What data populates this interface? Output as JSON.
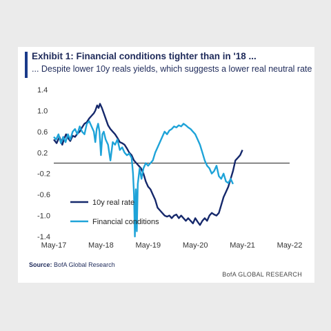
{
  "chart_data": {
    "type": "line",
    "title": "Exhibit 1: Financial conditions tighter than in '18 ...",
    "subtitle": "... Despite lower 10y reals yields, which suggests a lower real neutral rate",
    "ylim": [
      -1.4,
      1.4
    ],
    "yticks": [
      "1.4",
      "1.0",
      "0.6",
      "0.2",
      "-0.2",
      "-0.6",
      "-1.0",
      "-1.4"
    ],
    "xticks": [
      "May-17",
      "May-18",
      "May-19",
      "May-20",
      "May-21",
      "May-22"
    ],
    "legend_position": "bottom-left",
    "zero_line": true,
    "series": [
      {
        "name": "10y real rate",
        "color": "#15286b",
        "points": [
          [
            0.0,
            0.45
          ],
          [
            0.06,
            0.38
          ],
          [
            0.12,
            0.5
          ],
          [
            0.18,
            0.35
          ],
          [
            0.22,
            0.46
          ],
          [
            0.26,
            0.55
          ],
          [
            0.3,
            0.48
          ],
          [
            0.35,
            0.42
          ],
          [
            0.4,
            0.52
          ],
          [
            0.45,
            0.5
          ],
          [
            0.5,
            0.56
          ],
          [
            0.55,
            0.6
          ],
          [
            0.6,
            0.68
          ],
          [
            0.65,
            0.75
          ],
          [
            0.7,
            0.78
          ],
          [
            0.75,
            0.85
          ],
          [
            0.8,
            0.9
          ],
          [
            0.85,
            0.95
          ],
          [
            0.88,
            1.0
          ],
          [
            0.92,
            1.1
          ],
          [
            0.95,
            1.05
          ],
          [
            0.98,
            1.13
          ],
          [
            1.02,
            1.05
          ],
          [
            1.06,
            0.95
          ],
          [
            1.1,
            0.85
          ],
          [
            1.15,
            0.72
          ],
          [
            1.2,
            0.65
          ],
          [
            1.25,
            0.6
          ],
          [
            1.3,
            0.55
          ],
          [
            1.35,
            0.48
          ],
          [
            1.4,
            0.4
          ],
          [
            1.45,
            0.38
          ],
          [
            1.5,
            0.35
          ],
          [
            1.55,
            0.28
          ],
          [
            1.6,
            0.2
          ],
          [
            1.65,
            0.15
          ],
          [
            1.7,
            0.05
          ],
          [
            1.75,
            0.0
          ],
          [
            1.8,
            -0.05
          ],
          [
            1.85,
            -0.1
          ],
          [
            1.9,
            -0.2
          ],
          [
            1.95,
            -0.35
          ],
          [
            2.0,
            -0.45
          ],
          [
            2.05,
            -0.5
          ],
          [
            2.1,
            -0.6
          ],
          [
            2.15,
            -0.7
          ],
          [
            2.2,
            -0.85
          ],
          [
            2.25,
            -0.9
          ],
          [
            2.3,
            -0.95
          ],
          [
            2.35,
            -1.0
          ],
          [
            2.4,
            -1.02
          ],
          [
            2.45,
            -1.0
          ],
          [
            2.5,
            -1.05
          ],
          [
            2.55,
            -1.0
          ],
          [
            2.6,
            -0.98
          ],
          [
            2.65,
            -1.05
          ],
          [
            2.7,
            -1.0
          ],
          [
            2.75,
            -1.05
          ],
          [
            2.8,
            -1.1
          ],
          [
            2.85,
            -1.05
          ],
          [
            2.9,
            -1.1
          ],
          [
            2.95,
            -1.15
          ],
          [
            3.0,
            -1.05
          ],
          [
            3.05,
            -1.12
          ],
          [
            3.1,
            -1.18
          ],
          [
            3.15,
            -1.1
          ],
          [
            3.2,
            -1.05
          ],
          [
            3.25,
            -1.1
          ],
          [
            3.3,
            -1.0
          ],
          [
            3.35,
            -0.95
          ],
          [
            3.4,
            -0.98
          ],
          [
            3.45,
            -1.0
          ],
          [
            3.5,
            -0.95
          ],
          [
            3.55,
            -0.8
          ],
          [
            3.6,
            -0.65
          ],
          [
            3.65,
            -0.55
          ],
          [
            3.7,
            -0.45
          ],
          [
            3.75,
            -0.3
          ],
          [
            3.8,
            -0.15
          ],
          [
            3.85,
            0.05
          ],
          [
            3.9,
            0.1
          ],
          [
            3.95,
            0.15
          ],
          [
            4.0,
            0.25
          ]
        ]
      },
      {
        "name": "Financial conditions",
        "color": "#1ea3d8",
        "points": [
          [
            0.0,
            0.5
          ],
          [
            0.05,
            0.45
          ],
          [
            0.1,
            0.55
          ],
          [
            0.15,
            0.38
          ],
          [
            0.2,
            0.5
          ],
          [
            0.25,
            0.4
          ],
          [
            0.3,
            0.55
          ],
          [
            0.35,
            0.45
          ],
          [
            0.4,
            0.6
          ],
          [
            0.45,
            0.65
          ],
          [
            0.5,
            0.55
          ],
          [
            0.55,
            0.7
          ],
          [
            0.6,
            0.6
          ],
          [
            0.65,
            0.55
          ],
          [
            0.7,
            0.75
          ],
          [
            0.75,
            0.8
          ],
          [
            0.8,
            0.7
          ],
          [
            0.85,
            0.6
          ],
          [
            0.88,
            0.4
          ],
          [
            0.91,
            0.65
          ],
          [
            0.94,
            0.75
          ],
          [
            0.97,
            0.6
          ],
          [
            1.0,
            0.15
          ],
          [
            1.03,
            0.55
          ],
          [
            1.06,
            0.6
          ],
          [
            1.1,
            0.45
          ],
          [
            1.15,
            0.35
          ],
          [
            1.2,
            0.05
          ],
          [
            1.25,
            0.4
          ],
          [
            1.3,
            0.35
          ],
          [
            1.35,
            0.45
          ],
          [
            1.4,
            0.25
          ],
          [
            1.45,
            0.3
          ],
          [
            1.5,
            0.2
          ],
          [
            1.55,
            0.15
          ],
          [
            1.6,
            0.18
          ],
          [
            1.65,
            0.1
          ],
          [
            1.68,
            -0.2
          ],
          [
            1.7,
            -0.6
          ],
          [
            1.72,
            -1.4
          ],
          [
            1.74,
            -0.5
          ],
          [
            1.76,
            -1.3
          ],
          [
            1.78,
            -0.4
          ],
          [
            1.82,
            -0.1
          ],
          [
            1.86,
            -0.3
          ],
          [
            1.9,
            -0.1
          ],
          [
            1.95,
            0.0
          ],
          [
            2.0,
            -0.05
          ],
          [
            2.05,
            0.0
          ],
          [
            2.1,
            0.05
          ],
          [
            2.15,
            0.2
          ],
          [
            2.2,
            0.3
          ],
          [
            2.25,
            0.4
          ],
          [
            2.3,
            0.5
          ],
          [
            2.35,
            0.6
          ],
          [
            2.4,
            0.55
          ],
          [
            2.45,
            0.62
          ],
          [
            2.5,
            0.65
          ],
          [
            2.55,
            0.7
          ],
          [
            2.6,
            0.68
          ],
          [
            2.65,
            0.72
          ],
          [
            2.7,
            0.7
          ],
          [
            2.75,
            0.75
          ],
          [
            2.8,
            0.72
          ],
          [
            2.85,
            0.68
          ],
          [
            2.9,
            0.65
          ],
          [
            2.95,
            0.6
          ],
          [
            3.0,
            0.55
          ],
          [
            3.05,
            0.45
          ],
          [
            3.1,
            0.35
          ],
          [
            3.15,
            0.2
          ],
          [
            3.2,
            0.05
          ],
          [
            3.25,
            -0.05
          ],
          [
            3.3,
            -0.1
          ],
          [
            3.35,
            -0.2
          ],
          [
            3.4,
            -0.15
          ],
          [
            3.45,
            -0.05
          ],
          [
            3.5,
            -0.25
          ],
          [
            3.55,
            -0.3
          ],
          [
            3.6,
            -0.2
          ],
          [
            3.65,
            -0.35
          ],
          [
            3.7,
            -0.38
          ],
          [
            3.75,
            -0.3
          ],
          [
            3.8,
            -0.4
          ]
        ]
      }
    ]
  },
  "source": {
    "label": "Source:",
    "text": "BofA Global Research"
  },
  "brand": "BofA GLOBAL RESEARCH"
}
